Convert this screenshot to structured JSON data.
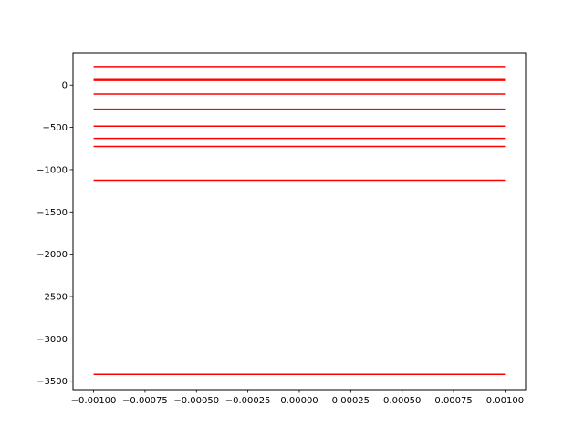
{
  "chart_data": {
    "type": "line",
    "title": "",
    "xlabel": "",
    "ylabel": "",
    "xlim": [
      -0.0011,
      0.0011
    ],
    "ylim": [
      -3600,
      380
    ],
    "grid": false,
    "legend": "none",
    "line_color": "#ff0000",
    "x_ticks": [
      {
        "value": -0.001,
        "label": "−0.00100"
      },
      {
        "value": -0.00075,
        "label": "−0.00075"
      },
      {
        "value": -0.0005,
        "label": "−0.00050"
      },
      {
        "value": -0.00025,
        "label": "−0.00025"
      },
      {
        "value": 0,
        "label": "0.00000"
      },
      {
        "value": 0.00025,
        "label": "0.00025"
      },
      {
        "value": 0.0005,
        "label": "0.00050"
      },
      {
        "value": 0.00075,
        "label": "0.00075"
      },
      {
        "value": 0.001,
        "label": "0.00100"
      }
    ],
    "y_ticks": [
      {
        "value": 0,
        "label": "0"
      },
      {
        "value": -500,
        "label": "−500"
      },
      {
        "value": -1000,
        "label": "−1000"
      },
      {
        "value": -1500,
        "label": "−1500"
      },
      {
        "value": -2000,
        "label": "−2000"
      },
      {
        "value": -2500,
        "label": "−2500"
      },
      {
        "value": -3000,
        "label": "−3000"
      },
      {
        "value": -3500,
        "label": "−3500"
      }
    ],
    "series": [
      {
        "x": [
          -0.001,
          0.001
        ],
        "y": [
          220,
          220
        ]
      },
      {
        "x": [
          -0.001,
          0.001
        ],
        "y": [
          65,
          65
        ]
      },
      {
        "x": [
          -0.001,
          0.001
        ],
        "y": [
          55,
          55
        ]
      },
      {
        "x": [
          -0.001,
          0.001
        ],
        "y": [
          -105,
          -105
        ]
      },
      {
        "x": [
          -0.001,
          0.001
        ],
        "y": [
          -285,
          -285
        ]
      },
      {
        "x": [
          -0.001,
          0.001
        ],
        "y": [
          -485,
          -485
        ]
      },
      {
        "x": [
          -0.001,
          0.001
        ],
        "y": [
          -630,
          -630
        ]
      },
      {
        "x": [
          -0.001,
          0.001
        ],
        "y": [
          -725,
          -725
        ]
      },
      {
        "x": [
          -0.001,
          0.001
        ],
        "y": [
          -1125,
          -1125
        ]
      },
      {
        "x": [
          -0.001,
          0.001
        ],
        "y": [
          -3420,
          -3420
        ]
      }
    ]
  }
}
